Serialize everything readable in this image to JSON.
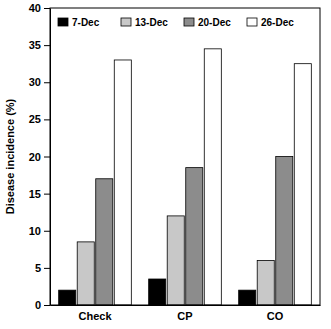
{
  "chart_data": {
    "type": "bar",
    "y_label": "Disease incidence (%)",
    "categories": [
      "Check",
      "CP",
      "CO"
    ],
    "series": [
      {
        "name": "7-Dec",
        "color": "#000000",
        "values": [
          2,
          3.5,
          2
        ]
      },
      {
        "name": "13-Dec",
        "color": "#c8c8c8",
        "values": [
          8.5,
          12,
          6
        ]
      },
      {
        "name": "20-Dec",
        "color": "#8c8c8c",
        "values": [
          17,
          18.5,
          20
        ]
      },
      {
        "name": "26-Dec",
        "color": "#ffffff",
        "values": [
          33,
          34.5,
          32.5
        ]
      }
    ],
    "ylim": [
      0,
      40
    ],
    "yticks": [
      0,
      5,
      10,
      15,
      20,
      25,
      30,
      35,
      40
    ],
    "grid": false,
    "legend": "top-left"
  }
}
